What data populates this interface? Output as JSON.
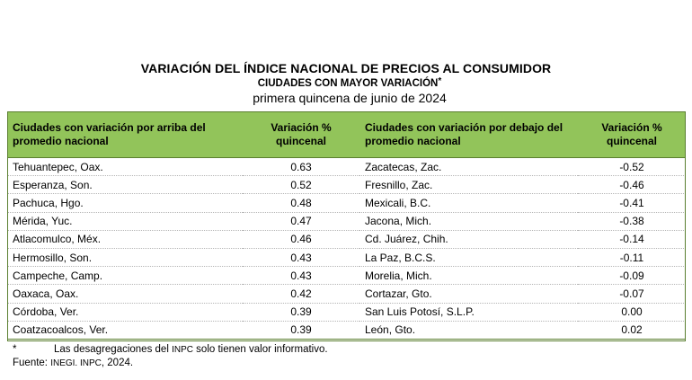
{
  "header": {
    "title": "VARIACIÓN DEL ÍNDICE NACIONAL DE PRECIOS AL CONSUMIDOR",
    "subtitle": "CIUDADES CON MAYOR VARIACIÓN",
    "subtitle_mark": "*",
    "period": "primera quincena de junio de 2024"
  },
  "table": {
    "columns": [
      "Ciudades con variación por arriba del promedio nacional",
      "Variación % quincenal",
      "Ciudades con variación por debajo del promedio nacional",
      "Variación % quincenal"
    ],
    "rows": [
      [
        "Tehuantepec, Oax.",
        "0.63",
        "Zacatecas, Zac.",
        "-0.52"
      ],
      [
        "Esperanza, Son.",
        "0.52",
        "Fresnillo, Zac.",
        "-0.46"
      ],
      [
        "Pachuca, Hgo.",
        "0.48",
        "Mexicali, B.C.",
        "-0.41"
      ],
      [
        "Mérida, Yuc.",
        "0.47",
        "Jacona, Mich.",
        "-0.38"
      ],
      [
        "Atlacomulco, Méx.",
        "0.46",
        "Cd. Juárez, Chih.",
        "-0.14"
      ],
      [
        "Hermosillo, Son.",
        "0.43",
        "La Paz, B.C.S.",
        "-0.11"
      ],
      [
        "Campeche, Camp.",
        "0.43",
        "Morelia, Mich.",
        "-0.09"
      ],
      [
        "Oaxaca, Oax.",
        "0.42",
        "Cortazar, Gto.",
        "-0.07"
      ],
      [
        "Córdoba, Ver.",
        "0.39",
        "San Luis Potosí, S.L.P.",
        "0.00"
      ],
      [
        "Coatzacoalcos, Ver.",
        "0.39",
        "León, Gto.",
        "0.02"
      ]
    ]
  },
  "footnote": {
    "mark": "*",
    "text_before": "Las desagregaciones del ",
    "text_abbr": "INPC",
    "text_after": " solo tienen valor informativo."
  },
  "source": {
    "label": "Fuente: ",
    "org": "INEGI. INPC",
    "year": ", 2024."
  },
  "colors": {
    "header_fill": "#92c45a",
    "border": "#5a7f30"
  }
}
